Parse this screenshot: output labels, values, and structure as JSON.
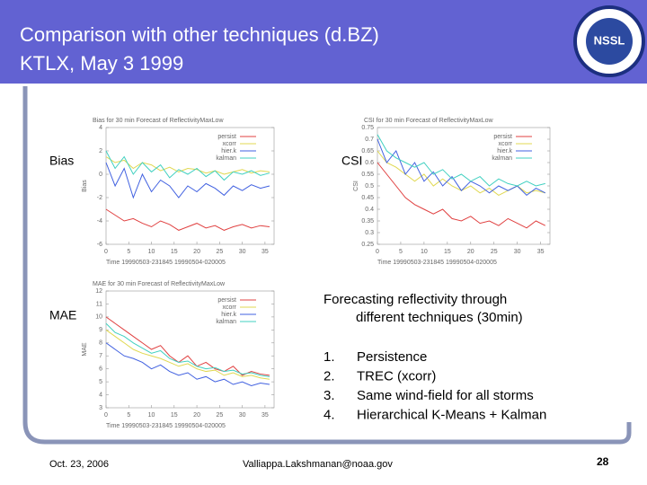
{
  "header": {
    "title_lines": [
      "Comparison with other techniques (d.BZ)",
      "KTLX, May 3 1999"
    ],
    "logo": "NSSL"
  },
  "charts": [
    {
      "label": "Bias",
      "title": "Bias for 30 min Forecast of ReflectivityMaxLow",
      "ylabel": "Bias",
      "xlabel": "Time 19990503-231845 19990504-020005",
      "x": [
        0,
        2,
        4,
        6,
        8,
        10,
        12,
        14,
        16,
        18,
        20,
        22,
        24,
        26,
        28,
        30,
        32,
        34,
        36
      ],
      "xlim": [
        0,
        37
      ],
      "xticks": [
        0,
        5,
        10,
        15,
        20,
        25,
        30,
        35
      ],
      "ylim": [
        -6,
        4
      ],
      "yticks": [
        -6,
        -4,
        -2,
        0,
        2,
        4
      ],
      "series": [
        {
          "name": "persist",
          "color": "#e04040",
          "values": [
            -3,
            -3.5,
            -4,
            -3.8,
            -4.2,
            -4.5,
            -4,
            -4.3,
            -4.8,
            -4.5,
            -4.2,
            -4.6,
            -4.4,
            -4.8,
            -4.5,
            -4.3,
            -4.6,
            -4.4,
            -4.5
          ]
        },
        {
          "name": "xcorr",
          "color": "#e0d850",
          "values": [
            1.5,
            1,
            1.2,
            0.5,
            1,
            0.8,
            0.3,
            0.6,
            0.2,
            0.5,
            0.4,
            0.1,
            0.3,
            0,
            0.2,
            0.4,
            0.1,
            0.3,
            0.2
          ]
        },
        {
          "name": "hier.k",
          "color": "#4060e0",
          "values": [
            1,
            -1,
            0.5,
            -2,
            0,
            -1.5,
            -0.5,
            -1,
            -2,
            -1,
            -1.5,
            -0.8,
            -1.2,
            -1.8,
            -1,
            -1.4,
            -0.9,
            -1.2,
            -1
          ]
        },
        {
          "name": "kalman",
          "color": "#40d0c0",
          "values": [
            2,
            0.5,
            1.5,
            0,
            1,
            0.2,
            0.8,
            -0.3,
            0.4,
            0,
            0.5,
            -0.2,
            0.3,
            -0.5,
            0.2,
            0,
            0.3,
            -0.1,
            0.1
          ]
        }
      ]
    },
    {
      "label": "CSI",
      "title": "CSI for 30 min Forecast of ReflectivityMaxLow",
      "ylabel": "CSI",
      "xlabel": "Time 19990503-231845 19990504-020005",
      "x": [
        0,
        2,
        4,
        6,
        8,
        10,
        12,
        14,
        16,
        18,
        20,
        22,
        24,
        26,
        28,
        30,
        32,
        34,
        36
      ],
      "xlim": [
        0,
        37
      ],
      "xticks": [
        0,
        5,
        10,
        15,
        20,
        25,
        30,
        35
      ],
      "ylim": [
        0.25,
        0.75
      ],
      "yticks": [
        0.25,
        0.3,
        0.35,
        0.4,
        0.45,
        0.5,
        0.55,
        0.6,
        0.65,
        0.7,
        0.75
      ],
      "series": [
        {
          "name": "persist",
          "color": "#e04040",
          "values": [
            0.6,
            0.55,
            0.5,
            0.45,
            0.42,
            0.4,
            0.38,
            0.4,
            0.36,
            0.35,
            0.37,
            0.34,
            0.35,
            0.33,
            0.36,
            0.34,
            0.32,
            0.35,
            0.33
          ]
        },
        {
          "name": "xcorr",
          "color": "#e0d850",
          "values": [
            0.65,
            0.6,
            0.58,
            0.55,
            0.52,
            0.55,
            0.5,
            0.53,
            0.5,
            0.48,
            0.5,
            0.47,
            0.49,
            0.46,
            0.48,
            0.5,
            0.47,
            0.48,
            0.47
          ]
        },
        {
          "name": "hier.k",
          "color": "#4060e0",
          "values": [
            0.7,
            0.6,
            0.65,
            0.55,
            0.6,
            0.52,
            0.56,
            0.5,
            0.54,
            0.48,
            0.52,
            0.5,
            0.47,
            0.5,
            0.48,
            0.5,
            0.46,
            0.49,
            0.47
          ]
        },
        {
          "name": "kalman",
          "color": "#40d0c0",
          "values": [
            0.72,
            0.65,
            0.62,
            0.6,
            0.58,
            0.6,
            0.55,
            0.57,
            0.53,
            0.55,
            0.52,
            0.54,
            0.5,
            0.53,
            0.51,
            0.5,
            0.52,
            0.5,
            0.51
          ]
        }
      ]
    },
    {
      "label": "MAE",
      "title": "MAE for 30 min Forecast of ReflectivityMaxLow",
      "ylabel": "MAE",
      "xlabel": "Time 19990503-231845 19990504-020005",
      "x": [
        0,
        2,
        4,
        6,
        8,
        10,
        12,
        14,
        16,
        18,
        20,
        22,
        24,
        26,
        28,
        30,
        32,
        34,
        36
      ],
      "xlim": [
        0,
        37
      ],
      "xticks": [
        0,
        5,
        10,
        15,
        20,
        25,
        30,
        35
      ],
      "ylim": [
        3,
        12
      ],
      "yticks": [
        3,
        4,
        5,
        6,
        7,
        8,
        9,
        10,
        11,
        12
      ],
      "series": [
        {
          "name": "persist",
          "color": "#e04040",
          "values": [
            10,
            9.5,
            9,
            8.5,
            8,
            7.5,
            7.8,
            7,
            6.5,
            7,
            6.2,
            6.5,
            6,
            5.8,
            6.2,
            5.5,
            5.8,
            5.6,
            5.5
          ]
        },
        {
          "name": "xcorr",
          "color": "#e0d850",
          "values": [
            9,
            8.5,
            8,
            7.5,
            7.2,
            7,
            6.8,
            6.5,
            6.2,
            6.4,
            6,
            5.8,
            5.9,
            5.5,
            5.7,
            5.4,
            5.5,
            5.3,
            5.2
          ]
        },
        {
          "name": "hier.k",
          "color": "#4060e0",
          "values": [
            8,
            7.5,
            7,
            6.8,
            6.5,
            6,
            6.3,
            5.8,
            5.5,
            5.7,
            5.2,
            5.4,
            5,
            5.2,
            4.8,
            5,
            4.7,
            4.9,
            4.8
          ]
        },
        {
          "name": "kalman",
          "color": "#40d0c0",
          "values": [
            9.5,
            8.8,
            8.5,
            8,
            7.6,
            7.2,
            7.4,
            6.8,
            6.5,
            6.6,
            6.2,
            6,
            6.1,
            5.8,
            5.9,
            5.6,
            5.7,
            5.5,
            5.4
          ]
        }
      ]
    }
  ],
  "body": {
    "intro_lines": [
      "Forecasting reflectivity through",
      "different techniques (30min)"
    ],
    "list": [
      {
        "number": "1.",
        "text": "Persistence"
      },
      {
        "number": "2.",
        "text": "TREC (xcorr)"
      },
      {
        "number": "3.",
        "text": "Same wind-field for all storms"
      },
      {
        "number": "4.",
        "text": "Hierarchical K-Means + Kalman"
      }
    ]
  },
  "footer": {
    "date": "Oct. 23, 2006",
    "email": "Valliappa.Lakshmanan@noaa.gov",
    "page": "28"
  }
}
